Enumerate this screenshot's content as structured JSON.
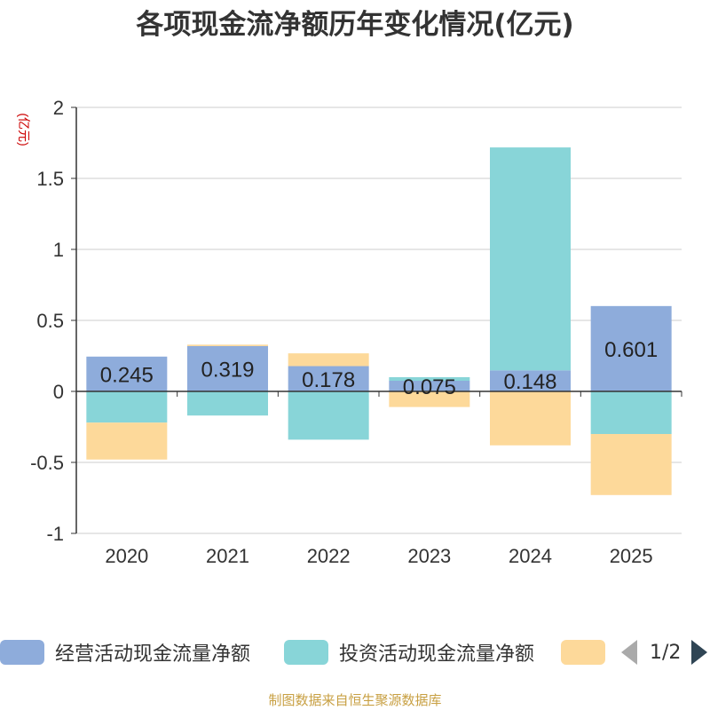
{
  "chart_data": {
    "type": "bar",
    "stacked": true,
    "title": "各项现金流净额历年变化情况(亿元)",
    "ylabel": "(亿元)",
    "ylim": [
      -1,
      2
    ],
    "yticks": [
      2,
      1.5,
      1,
      0.5,
      0,
      -0.5,
      -1
    ],
    "ytick_labels": [
      "2",
      "1.5",
      "1",
      "0.5",
      "0",
      "-0.5",
      "-1"
    ],
    "categories": [
      "2020",
      "2021",
      "2022",
      "2023",
      "2024",
      "2025"
    ],
    "series": [
      {
        "name": "经营活动现金流量净额",
        "color": "#8eacdb",
        "values": [
          0.245,
          0.319,
          0.178,
          0.075,
          0.148,
          0.601
        ],
        "labels": [
          "0.245",
          "0.319",
          "0.178",
          "0.075",
          "0.148",
          "0.601"
        ]
      },
      {
        "name": "投资活动现金流量净额",
        "color": "#88d5d8",
        "values": [
          -0.22,
          -0.17,
          -0.34,
          0.025,
          1.57,
          -0.3
        ]
      },
      {
        "name": "",
        "color": "#fdd99a",
        "values": [
          -0.26,
          0.01,
          0.09,
          -0.11,
          -0.38,
          -0.43
        ]
      }
    ]
  },
  "legend": {
    "items": [
      "经营活动现金流量净额",
      "投资活动现金流量净额",
      ""
    ],
    "page_text": "1/2"
  },
  "source": "制图数据来自恒生聚源数据库"
}
